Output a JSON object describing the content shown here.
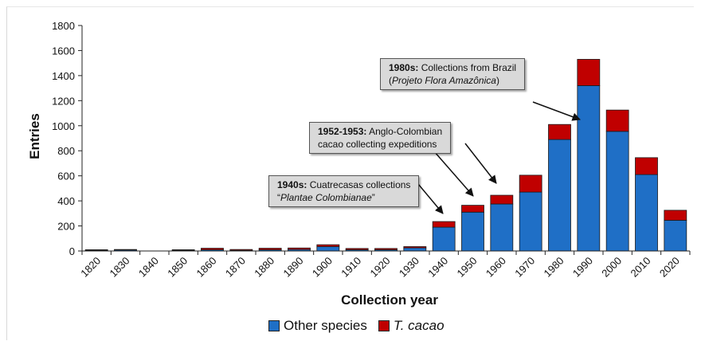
{
  "chart_data": {
    "type": "bar",
    "stacked": true,
    "categories": [
      "1820",
      "1830",
      "1840",
      "1850",
      "1860",
      "1870",
      "1880",
      "1890",
      "1900",
      "1910",
      "1920",
      "1930",
      "1940",
      "1950",
      "1960",
      "1970",
      "1980",
      "1990",
      "2000",
      "2010",
      "2020"
    ],
    "series": [
      {
        "name": "Other species",
        "color": "#1f6fc6",
        "values": [
          5,
          8,
          0,
          5,
          10,
          5,
          10,
          12,
          35,
          10,
          10,
          25,
          190,
          310,
          375,
          470,
          890,
          1320,
          955,
          610,
          245
        ]
      },
      {
        "name": "T. cacao",
        "color": "#c00000",
        "values": [
          5,
          4,
          0,
          5,
          12,
          7,
          12,
          12,
          15,
          10,
          10,
          10,
          45,
          55,
          70,
          135,
          120,
          210,
          170,
          135,
          80
        ]
      }
    ],
    "xlabel": "Collection year",
    "ylabel": "Entries",
    "ylim": [
      0,
      1800
    ],
    "yticks": [
      "0",
      "200",
      "400",
      "600",
      "800",
      "1000",
      "1200",
      "1400",
      "1600",
      "1800"
    ],
    "grid": false,
    "legend_position": "bottom",
    "annotations": [
      {
        "bold": "1980s:",
        "text": " Collections from Brazil",
        "line2_pre": "(",
        "line2_italic": "Projeto Flora Amazônica",
        "line2_post": ")",
        "target": "1980"
      },
      {
        "bold": "1952-1953:",
        "text": " Anglo-Colombian",
        "line2_pre": "cacao collecting expeditions",
        "line2_italic": "",
        "line2_post": "",
        "target": "1950"
      },
      {
        "bold": "1940s:",
        "text": " Cuatrecasas collections",
        "line2_pre": "“",
        "line2_italic": "Plantae Colombianae",
        "line2_post": "”",
        "target": "1940"
      }
    ]
  }
}
